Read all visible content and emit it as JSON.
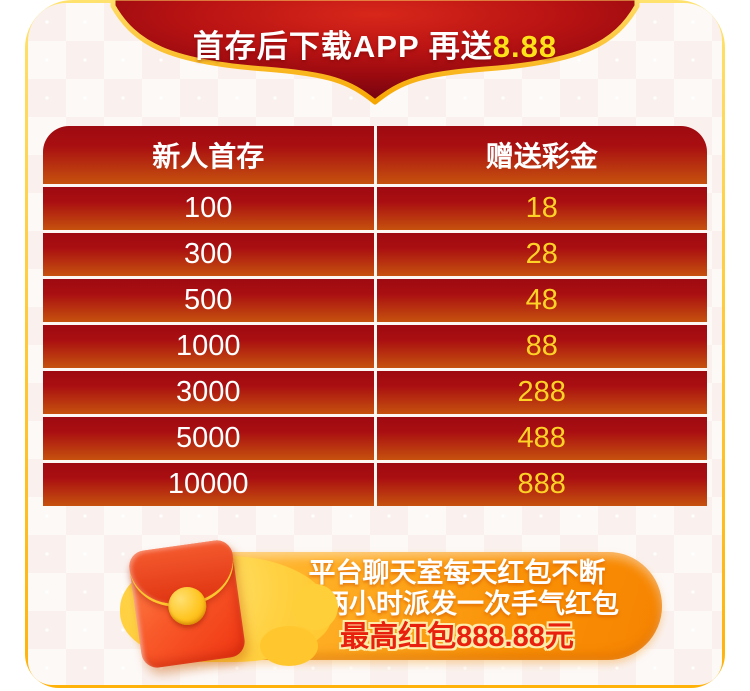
{
  "top_banner": {
    "label": "首存后下载APP 再送",
    "highlight": "8.88",
    "text_color": "#ffffff",
    "highlight_color": "#ffe11a"
  },
  "table": {
    "headers": [
      "新人首存",
      "赠送彩金"
    ],
    "rows": [
      [
        "100",
        "18"
      ],
      [
        "300",
        "28"
      ],
      [
        "500",
        "48"
      ],
      [
        "1000",
        "88"
      ],
      [
        "3000",
        "288"
      ],
      [
        "5000",
        "488"
      ],
      [
        "10000",
        "888"
      ]
    ],
    "deposit_color": "#ffffff",
    "bonus_color": "#ffd226"
  },
  "bottom_banner": {
    "icon": "red-envelope-icon",
    "lines": [
      "平台聊天室每天红包不断",
      "每两小时派发一次手气红包"
    ],
    "highlight_line": "最高红包888.88元",
    "highlight_color": "#e8210e"
  },
  "colors": {
    "frame_gold": "#f29e00",
    "ribbon_red_center": "#d8271a",
    "ribbon_red_edge": "#7c0510",
    "row_gradient_top": "#9e0a11",
    "row_gradient_bottom": "#c6520e",
    "banner_orange": "#f98f04",
    "page_background": "#faf1ee"
  }
}
